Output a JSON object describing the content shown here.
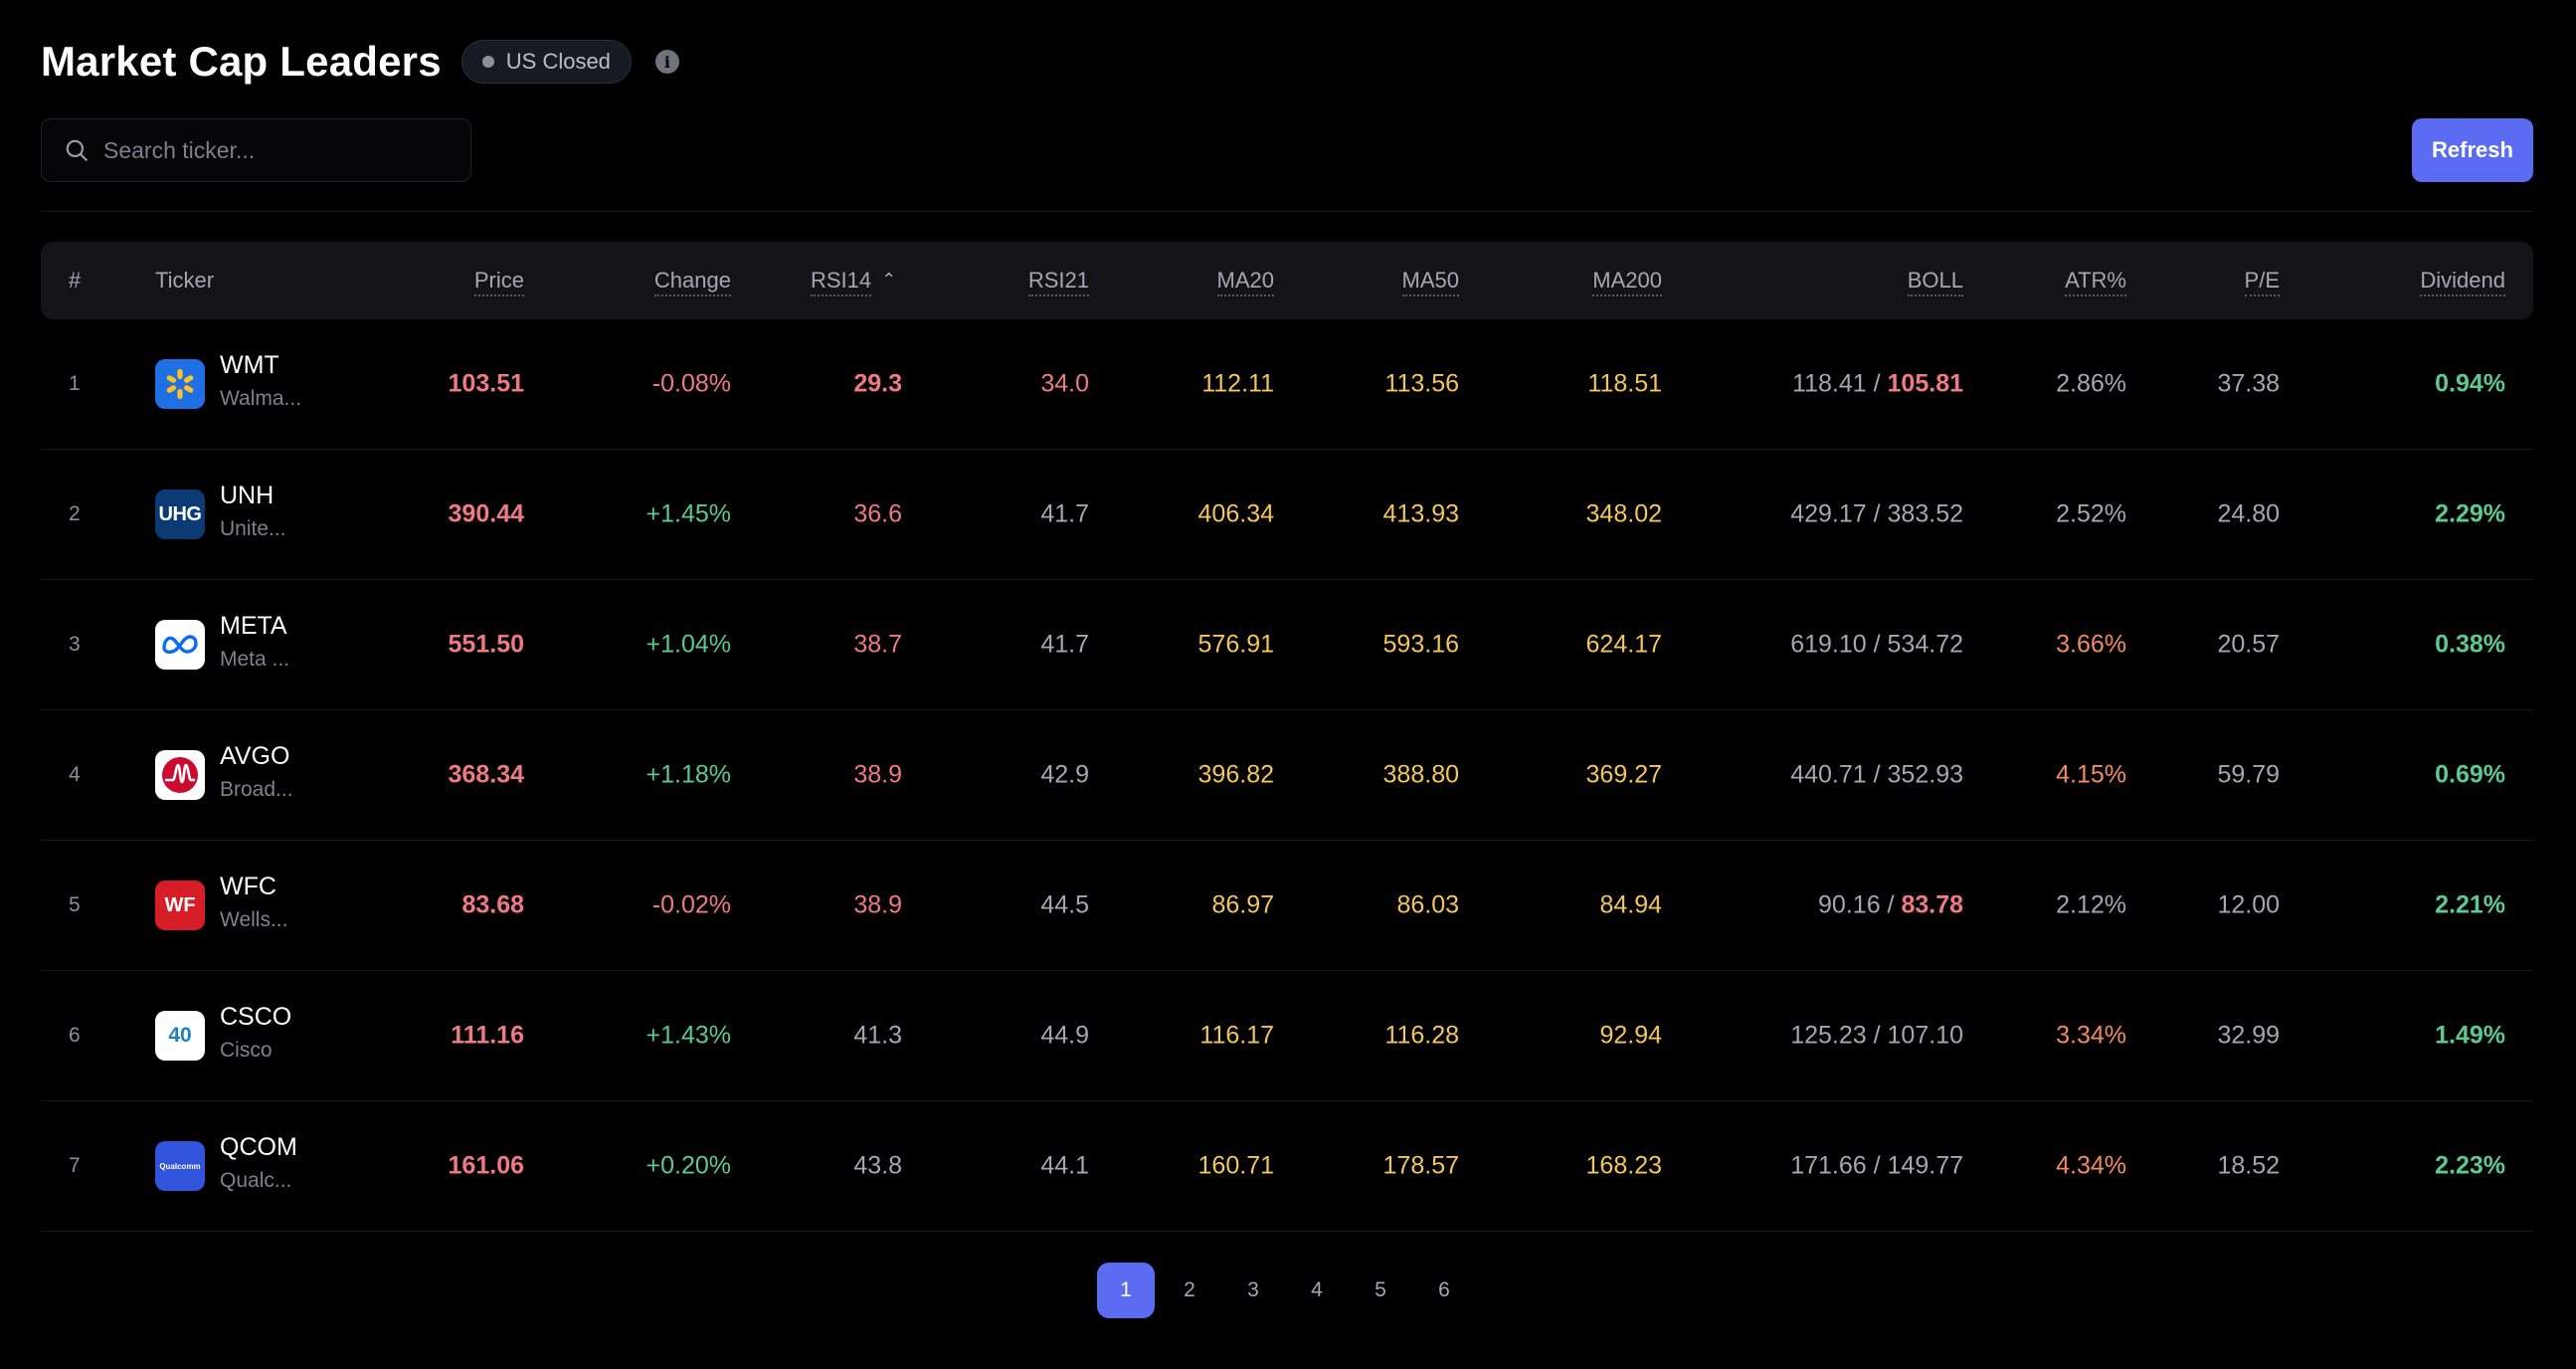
{
  "header": {
    "title": "Market Cap Leaders",
    "status": "US Closed",
    "info_glyph": "i"
  },
  "toolbar": {
    "search_placeholder": "Search ticker...",
    "refresh_label": "Refresh"
  },
  "columns": {
    "index": "#",
    "ticker": "Ticker",
    "price": "Price",
    "change": "Change",
    "rsi14": "RSI14",
    "rsi21": "RSI21",
    "ma20": "MA20",
    "ma50": "MA50",
    "ma200": "MA200",
    "boll": "BOLL",
    "atr": "ATR%",
    "pe": "P/E",
    "dividend": "Dividend"
  },
  "sort": {
    "column": "RSI14",
    "direction": "ascending"
  },
  "rows": [
    {
      "index": "1",
      "symbol": "WMT",
      "name": "Walma...",
      "price": "103.51",
      "change": "-0.08%",
      "rsi14": "29.3",
      "rsi21": "34.0",
      "ma20": "112.11",
      "ma50": "113.56",
      "ma200": "118.51",
      "boll_upper": "118.41",
      "boll_lower": "105.81",
      "atr": "2.86%",
      "pe": "37.38",
      "dividend": "0.94%"
    },
    {
      "index": "2",
      "symbol": "UNH",
      "name": "Unite...",
      "price": "390.44",
      "change": "+1.45%",
      "rsi14": "36.6",
      "rsi21": "41.7",
      "ma20": "406.34",
      "ma50": "413.93",
      "ma200": "348.02",
      "boll_upper": "429.17",
      "boll_lower": "383.52",
      "atr": "2.52%",
      "pe": "24.80",
      "dividend": "2.29%"
    },
    {
      "index": "3",
      "symbol": "META",
      "name": "Meta ...",
      "price": "551.50",
      "change": "+1.04%",
      "rsi14": "38.7",
      "rsi21": "41.7",
      "ma20": "576.91",
      "ma50": "593.16",
      "ma200": "624.17",
      "boll_upper": "619.10",
      "boll_lower": "534.72",
      "atr": "3.66%",
      "pe": "20.57",
      "dividend": "0.38%"
    },
    {
      "index": "4",
      "symbol": "AVGO",
      "name": "Broad...",
      "price": "368.34",
      "change": "+1.18%",
      "rsi14": "38.9",
      "rsi21": "42.9",
      "ma20": "396.82",
      "ma50": "388.80",
      "ma200": "369.27",
      "boll_upper": "440.71",
      "boll_lower": "352.93",
      "atr": "4.15%",
      "pe": "59.79",
      "dividend": "0.69%"
    },
    {
      "index": "5",
      "symbol": "WFC",
      "name": "Wells...",
      "price": "83.68",
      "change": "-0.02%",
      "rsi14": "38.9",
      "rsi21": "44.5",
      "ma20": "86.97",
      "ma50": "86.03",
      "ma200": "84.94",
      "boll_upper": "90.16",
      "boll_lower": "83.78",
      "atr": "2.12%",
      "pe": "12.00",
      "dividend": "2.21%"
    },
    {
      "index": "6",
      "symbol": "CSCO",
      "name": "Cisco",
      "price": "111.16",
      "change": "+1.43%",
      "rsi14": "41.3",
      "rsi21": "44.9",
      "ma20": "116.17",
      "ma50": "116.28",
      "ma200": "92.94",
      "boll_upper": "125.23",
      "boll_lower": "107.10",
      "atr": "3.34%",
      "pe": "32.99",
      "dividend": "1.49%"
    },
    {
      "index": "7",
      "symbol": "QCOM",
      "name": "Qualc...",
      "price": "161.06",
      "change": "+0.20%",
      "rsi14": "43.8",
      "rsi21": "44.1",
      "ma20": "160.71",
      "ma50": "178.57",
      "ma200": "168.23",
      "boll_upper": "171.66",
      "boll_lower": "149.77",
      "atr": "4.34%",
      "pe": "18.52",
      "dividend": "2.23%"
    }
  ],
  "logos": {
    "WMT": {
      "icon": "walmart-spark-icon",
      "bg": "#1f6fe5"
    },
    "UNH": {
      "icon": "uhg-logo-icon",
      "bg": "#0b3a75",
      "text": "UHG"
    },
    "META": {
      "icon": "meta-infinity-icon",
      "bg": "#ffffff"
    },
    "AVGO": {
      "icon": "broadcom-pulse-icon",
      "bg": "#ffffff"
    },
    "WFC": {
      "icon": "wells-fargo-logo-icon",
      "bg": "#d71e28",
      "text": "WF"
    },
    "CSCO": {
      "icon": "cisco-40-logo-icon",
      "bg": "#ffffff",
      "text": "40"
    },
    "QCOM": {
      "icon": "qualcomm-logo-icon",
      "bg": "#3253dc",
      "text": "Qualcomm"
    }
  },
  "pagination": {
    "pages": [
      "1",
      "2",
      "3",
      "4",
      "5",
      "6"
    ],
    "current": "1"
  },
  "colors": {
    "accent": "#5b6cf2",
    "negative": "#f07a82",
    "positive": "#5cc98f",
    "ma": "#f3c75a",
    "atr_high": "#f08c62",
    "neutral": "#a3a8b1"
  }
}
